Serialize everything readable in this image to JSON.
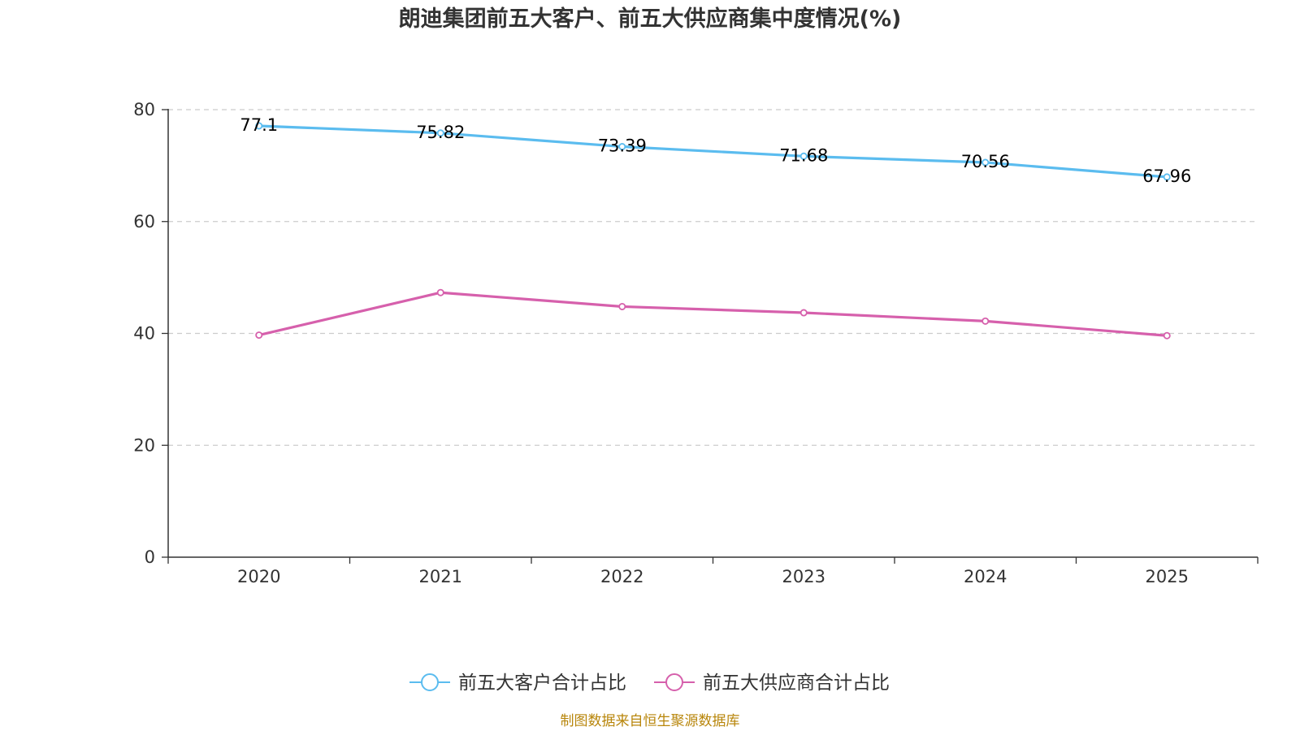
{
  "chart_data": {
    "type": "line",
    "title": "朗迪集团前五大客户、前五大供应商集中度情况(%)",
    "categories": [
      "2020",
      "2021",
      "2022",
      "2023",
      "2024",
      "2025"
    ],
    "series": [
      {
        "name": "前五大客户合计占比",
        "values": [
          77.1,
          75.82,
          73.39,
          71.68,
          70.56,
          67.96
        ],
        "labels": [
          "77.1",
          "75.82",
          "73.39",
          "71.68",
          "70.56",
          "67.96"
        ],
        "color": "#5bbcef",
        "show_labels": true
      },
      {
        "name": "前五大供应商合计占比",
        "values": [
          39.7,
          47.3,
          44.8,
          43.7,
          42.2,
          39.6
        ],
        "color": "#d660ac",
        "show_labels": false
      }
    ],
    "yticks": [
      "0",
      "20",
      "40",
      "60",
      "80"
    ],
    "ylim": [
      0,
      80
    ],
    "grid": true,
    "legend": "bottom",
    "source": "制图数据来自恒生聚源数据库"
  }
}
